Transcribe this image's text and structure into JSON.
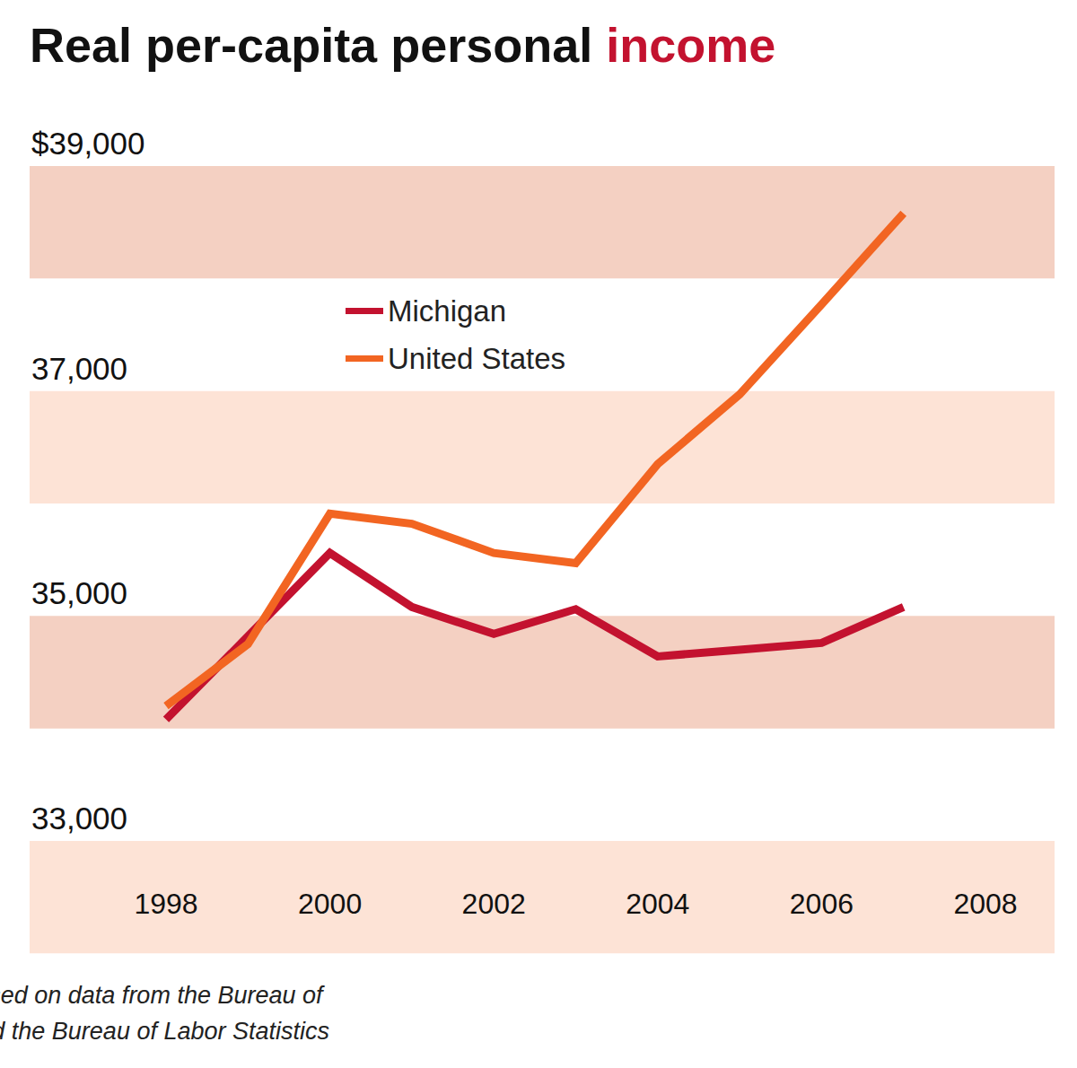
{
  "chart_data": {
    "type": "line",
    "title": "Real per-capita personal income",
    "source": "Source: Author’s calculations based on data from the Bureau of Economic Analysis and the Bureau of Labor Statistics",
    "x": [
      1998,
      1999,
      2000,
      2001,
      2002,
      2003,
      2004,
      2005,
      2006,
      2007
    ],
    "series": [
      {
        "name": "Michigan",
        "color": "#c3122f",
        "values": [
          34080,
          34820,
          35560,
          35080,
          34840,
          35060,
          34640,
          34700,
          34760,
          35080
        ]
      },
      {
        "name": "United States",
        "color": "#f26522",
        "values": [
          34200,
          34750,
          35910,
          35820,
          35560,
          35470,
          36350,
          36970,
          37770,
          38580
        ]
      }
    ],
    "xlim": [
      1998,
      2008
    ],
    "xticks": [
      1998,
      2000,
      2002,
      2004,
      2006,
      2008
    ],
    "ylim": [
      33000,
      39000
    ],
    "yticks": [
      {
        "value": 33000,
        "label": "33,000"
      },
      {
        "value": 35000,
        "label": "35,000"
      },
      {
        "value": 37000,
        "label": "37,000"
      },
      {
        "value": 39000,
        "label": "$39,000"
      }
    ],
    "grid": true,
    "legend": "upper left"
  }
}
